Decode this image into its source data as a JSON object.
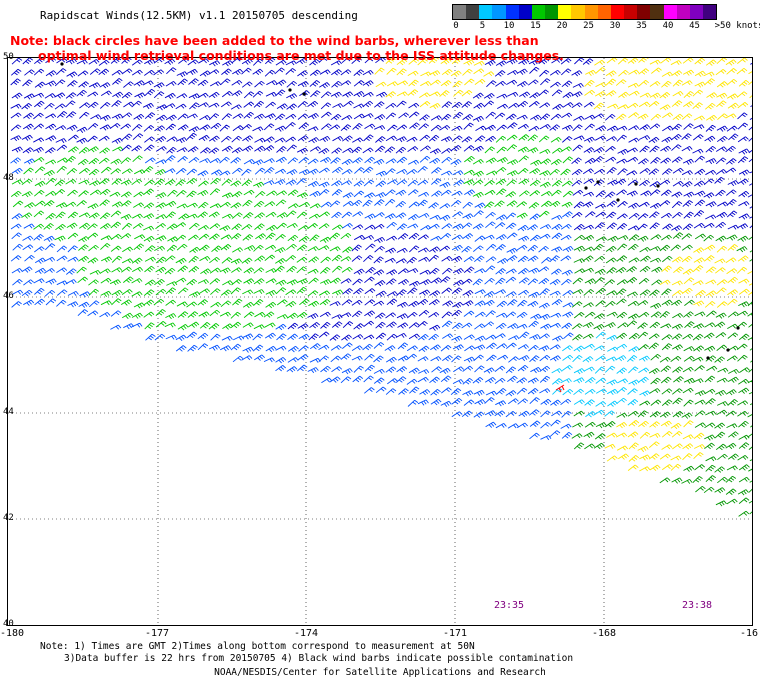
{
  "title": "Rapidscat Winds(12.5KM) v1.1 20150705 descending",
  "note": {
    "line1": "Note: black circles have been added to the wind barbs, wherever less than",
    "line2": "optimal wind retrieval conditions are met due to the ISS attitude changes."
  },
  "legend": {
    "colors": [
      "#808080",
      "#404040",
      "#00c8ff",
      "#0096ff",
      "#0032ff",
      "#0000c8",
      "#00c800",
      "#009600",
      "#ffff00",
      "#ffc800",
      "#ff9600",
      "#ff6400",
      "#ff0000",
      "#c80000",
      "#800000",
      "#503010",
      "#ff00ff",
      "#c000c0",
      "#8000c0",
      "#400080"
    ],
    "ticks": [
      "0",
      "5",
      "10",
      "15",
      "20",
      "25",
      "30",
      "35",
      "40",
      "45",
      ">50 knots"
    ]
  },
  "map": {
    "lat_labels": [
      "50",
      "48",
      "46",
      "44",
      "42",
      "40"
    ],
    "lon_labels": [
      "-180",
      "-177",
      "-174",
      "-171",
      "-168",
      "-16"
    ],
    "times": [
      "23:35",
      "23:38"
    ],
    "barb_colors": {
      "black": "#000000",
      "cyan": "#00c8ff",
      "blue": "#0050ff",
      "darkblue": "#0000c8",
      "green": "#00c800",
      "darkgreen": "#009600",
      "yellow": "#ffe600",
      "red": "#ff0000"
    }
  },
  "footer": {
    "line1": "Note: 1) Times are GMT 2)Times along bottom correspond to measurement at 50N",
    "line2": "3)Data buffer is 22 hrs from 20150705 4) Black wind barbs indicate possible contamination"
  },
  "credit": "NOAA/NESDIS/Center for Satellite Applications and Research"
}
